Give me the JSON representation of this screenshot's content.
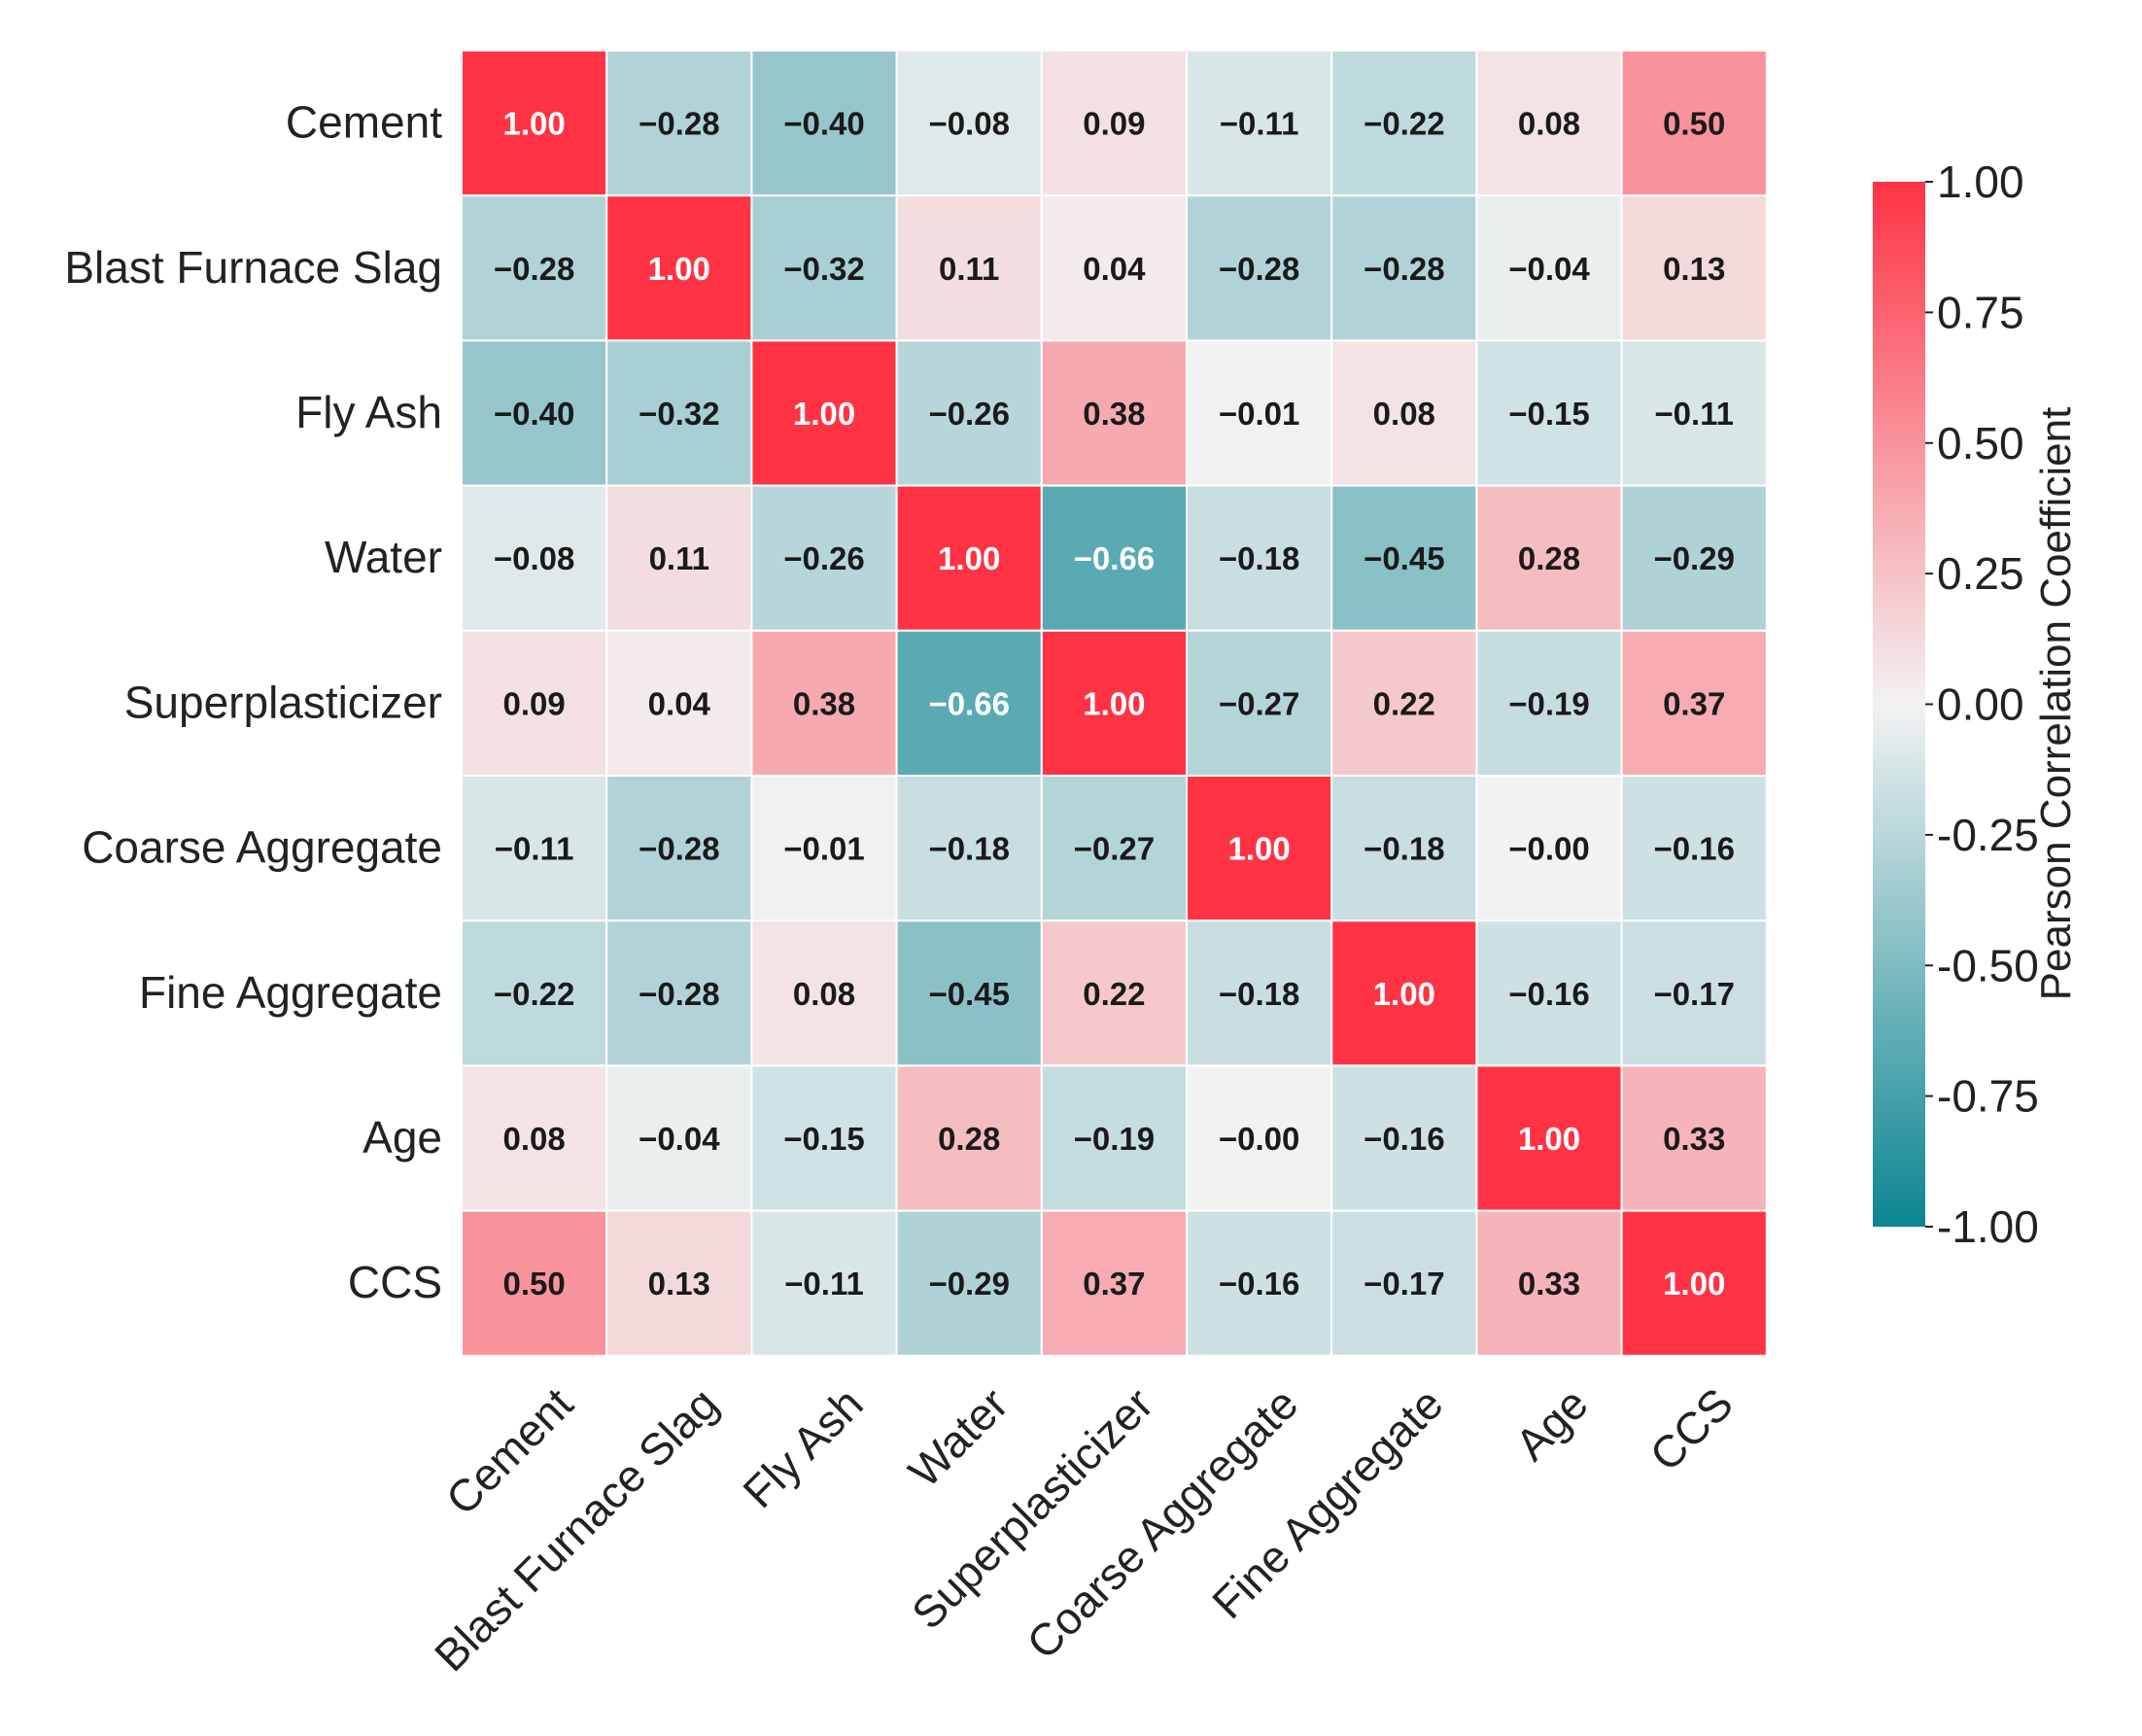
{
  "chart_data": {
    "type": "heatmap",
    "title": "",
    "labels": [
      "Cement",
      "Blast Furnace Slag",
      "Fly Ash",
      "Water",
      "Superplasticizer",
      "Coarse Aggregate",
      "Fine Aggregate",
      "Age",
      "CCS"
    ],
    "values": [
      [
        1.0,
        -0.28,
        -0.4,
        -0.08,
        0.09,
        -0.11,
        -0.22,
        0.08,
        0.5
      ],
      [
        -0.28,
        1.0,
        -0.32,
        0.11,
        0.04,
        -0.28,
        -0.28,
        -0.04,
        0.13
      ],
      [
        -0.4,
        -0.32,
        1.0,
        -0.26,
        0.38,
        -0.01,
        0.08,
        -0.15,
        -0.11
      ],
      [
        -0.08,
        0.11,
        -0.26,
        1.0,
        -0.66,
        -0.18,
        -0.45,
        0.28,
        -0.29
      ],
      [
        0.09,
        0.04,
        0.38,
        -0.66,
        1.0,
        -0.27,
        0.22,
        -0.19,
        0.37
      ],
      [
        -0.11,
        -0.28,
        -0.01,
        -0.18,
        -0.27,
        1.0,
        -0.18,
        -0.0,
        -0.16
      ],
      [
        -0.22,
        -0.28,
        0.08,
        -0.45,
        0.22,
        -0.18,
        1.0,
        -0.16,
        -0.17
      ],
      [
        0.08,
        -0.04,
        -0.15,
        0.28,
        -0.19,
        -0.0,
        -0.16,
        1.0,
        0.33
      ],
      [
        0.5,
        0.13,
        -0.11,
        -0.29,
        0.37,
        -0.16,
        -0.17,
        0.33,
        1.0
      ]
    ],
    "value_labels": [
      [
        "1.00",
        "−0.28",
        "−0.40",
        "−0.08",
        "0.09",
        "−0.11",
        "−0.22",
        "0.08",
        "0.50"
      ],
      [
        "−0.28",
        "1.00",
        "−0.32",
        "0.11",
        "0.04",
        "−0.28",
        "−0.28",
        "−0.04",
        "0.13"
      ],
      [
        "−0.40",
        "−0.32",
        "1.00",
        "−0.26",
        "0.38",
        "−0.01",
        "0.08",
        "−0.15",
        "−0.11"
      ],
      [
        "−0.08",
        "0.11",
        "−0.26",
        "1.00",
        "−0.66",
        "−0.18",
        "−0.45",
        "0.28",
        "−0.29"
      ],
      [
        "0.09",
        "0.04",
        "0.38",
        "−0.66",
        "1.00",
        "−0.27",
        "0.22",
        "−0.19",
        "0.37"
      ],
      [
        "−0.11",
        "−0.28",
        "−0.01",
        "−0.18",
        "−0.27",
        "1.00",
        "−0.18",
        "−0.00",
        "−0.16"
      ],
      [
        "−0.22",
        "−0.28",
        "0.08",
        "−0.45",
        "0.22",
        "−0.18",
        "1.00",
        "−0.16",
        "−0.17"
      ],
      [
        "0.08",
        "−0.04",
        "−0.15",
        "0.28",
        "−0.19",
        "−0.00",
        "−0.16",
        "1.00",
        "0.33"
      ],
      [
        "0.50",
        "0.13",
        "−0.11",
        "−0.29",
        "0.37",
        "−0.16",
        "−0.17",
        "0.33",
        "1.00"
      ]
    ],
    "colorbar": {
      "label": "Pearson Correlation Coefficient",
      "range": [
        -1,
        1
      ],
      "ticks": [
        1.0,
        0.75,
        0.5,
        0.25,
        0.0,
        -0.25,
        -0.5,
        -0.75,
        -1.0
      ],
      "tick_labels": [
        "1.00",
        "0.75",
        "0.50",
        "0.25",
        "0.00",
        "-0.25",
        "-0.50",
        "-0.75",
        "-1.00"
      ]
    },
    "colors": {
      "low": "#0b8592",
      "mid": "#f2f2f2",
      "high": "#ff3344"
    }
  }
}
